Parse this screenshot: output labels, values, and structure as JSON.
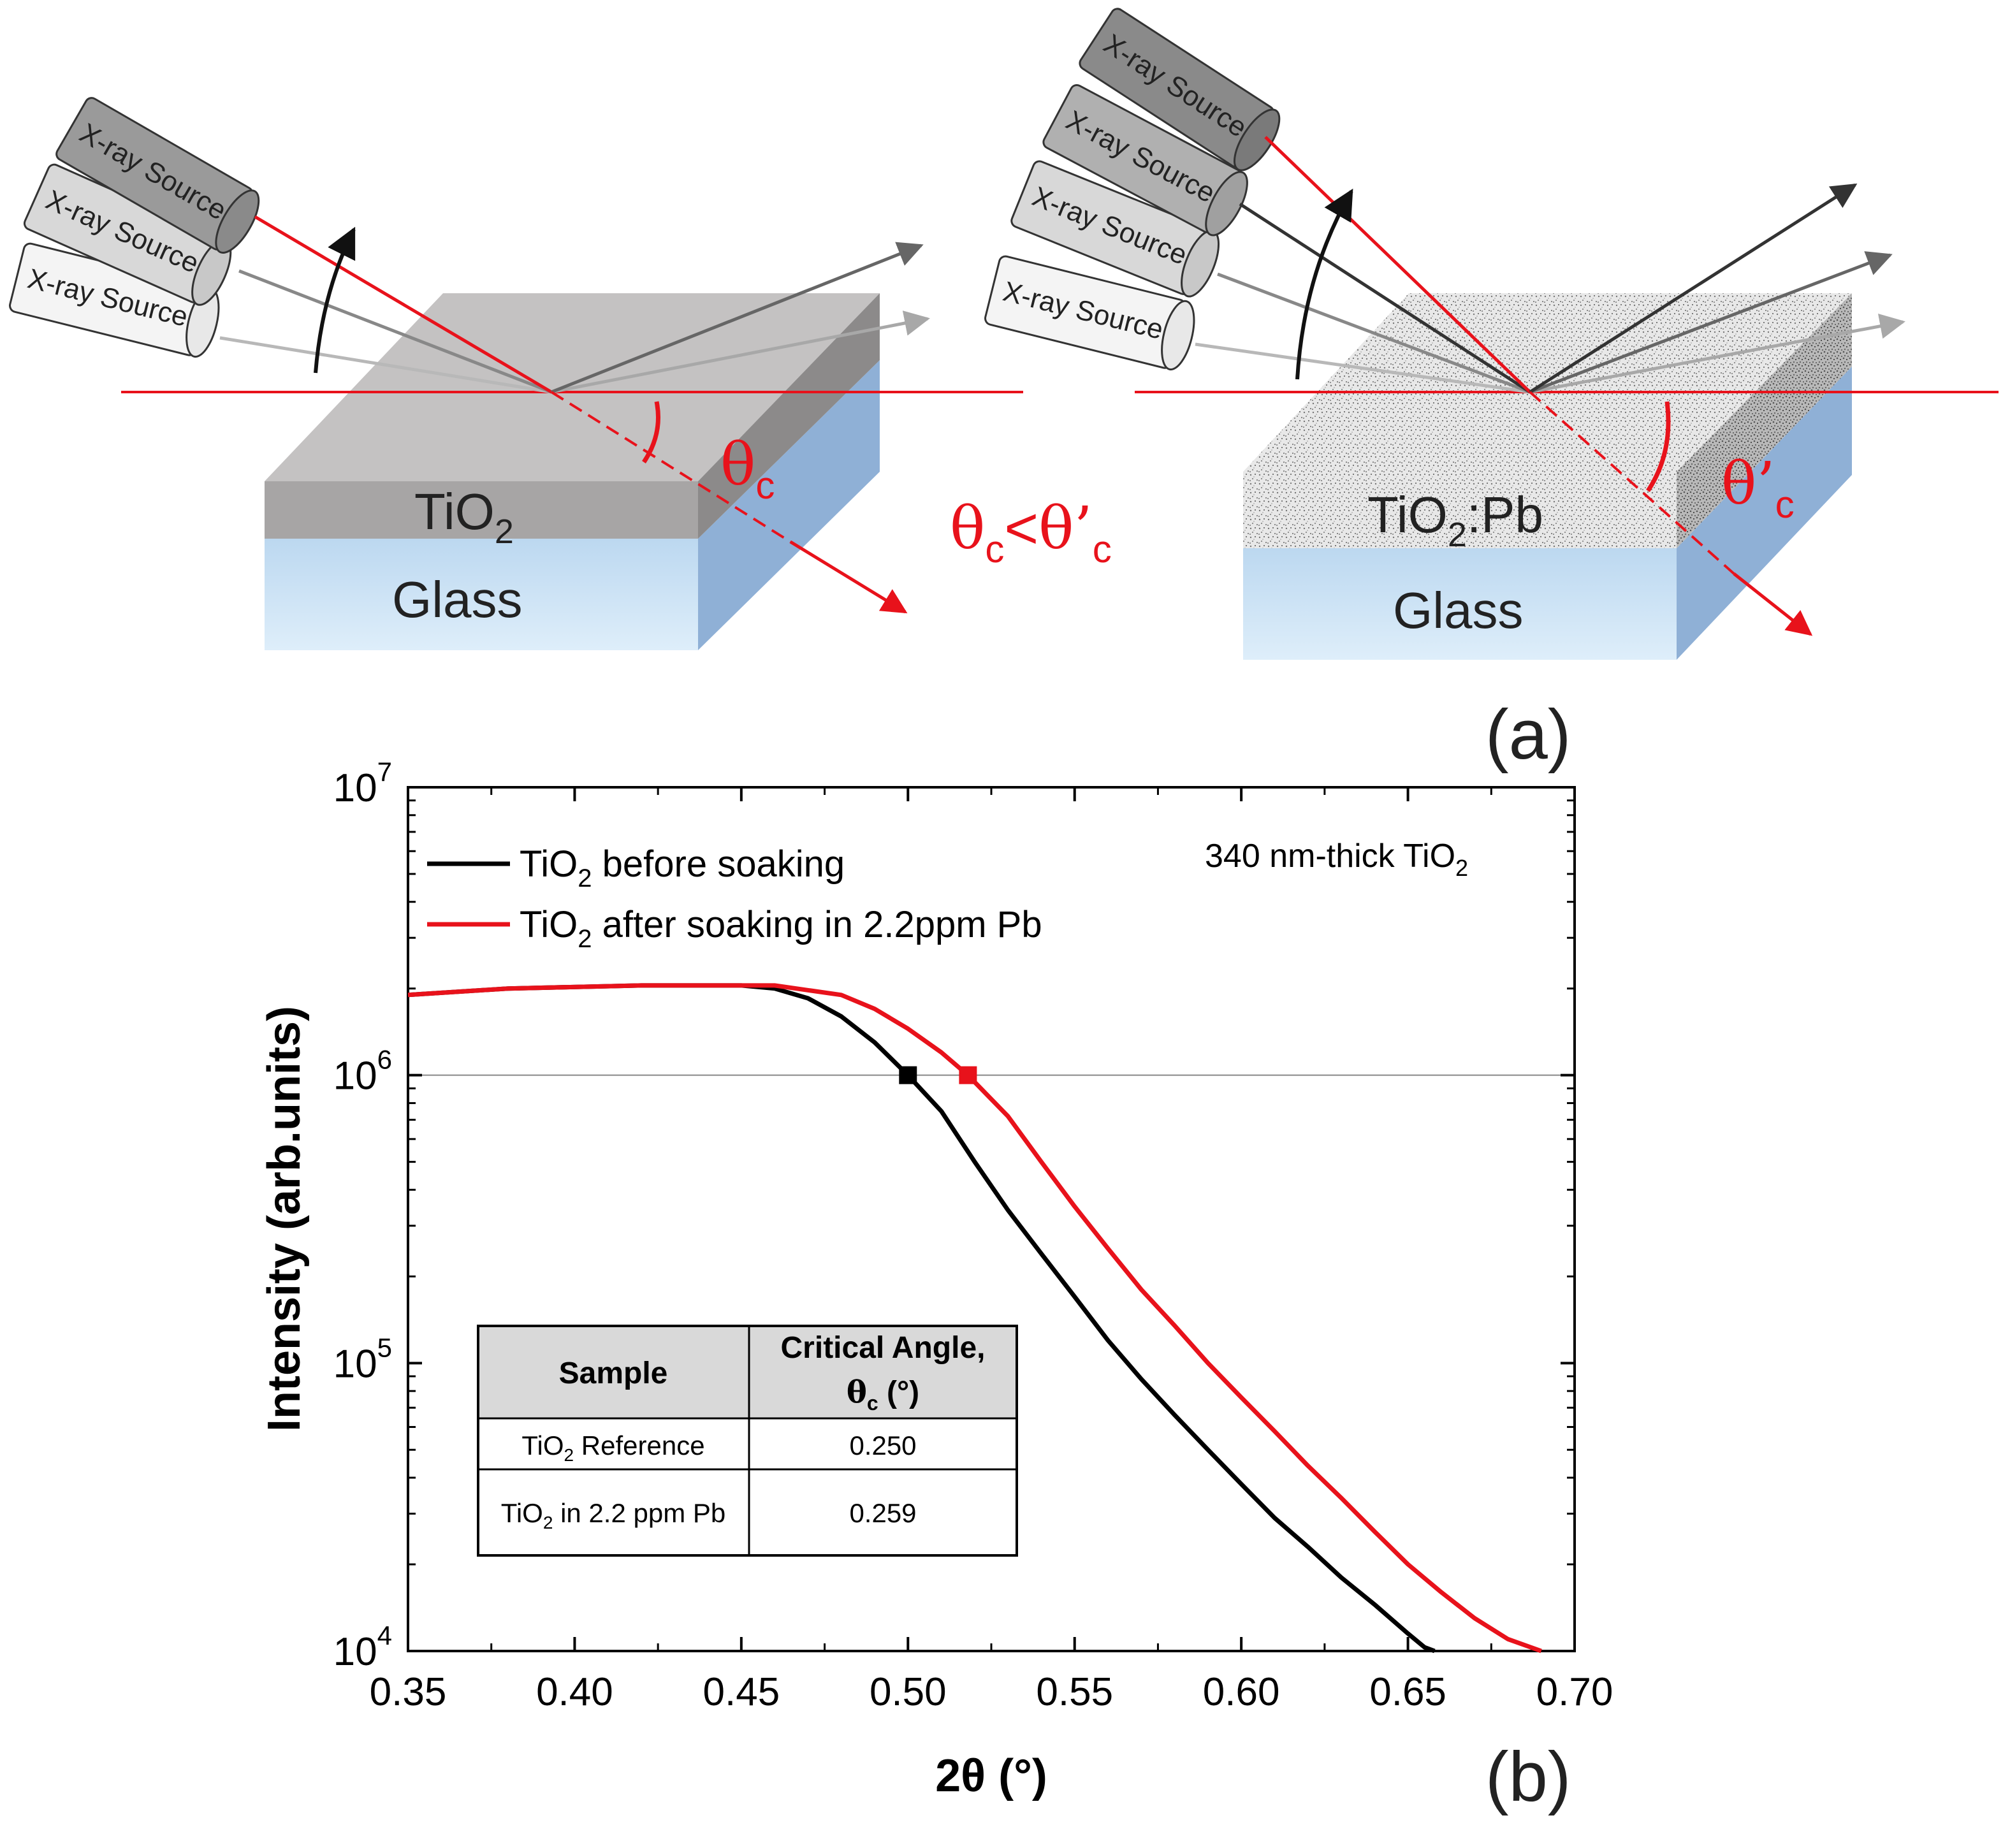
{
  "panel_a": {
    "label": "(a)",
    "source_label": "X-ray Source",
    "left_film": "TiO",
    "left_film_sub": "2",
    "right_film": "TiO",
    "right_film_sub": "2",
    "right_film_suffix": ":Pb",
    "substrate": "Glass",
    "theta": "θ",
    "theta_prime": "θ’",
    "theta_sub": "c",
    "comparison_lt": "<",
    "colors": {
      "beam": "#e8121b",
      "film_left": "#a5a3a3",
      "film_top": "#c6c4c4",
      "glass_front": "#cfe3f3",
      "glass_side": "#8fb0d6"
    }
  },
  "panel_b": {
    "label": "(b)",
    "annotation": "340 nm-thick TiO",
    "annotation_sub": "2",
    "legend": [
      {
        "prefix": "TiO",
        "sub": "2",
        "rest": " before soaking",
        "color": "#000000"
      },
      {
        "prefix": "TiO",
        "sub": "2",
        "rest": " after soaking in 2.2ppm Pb",
        "color": "#e8121b"
      }
    ],
    "table": {
      "header_sample": "Sample",
      "header_angle_line1": "Critical Angle,",
      "header_angle_line2_sym": "θ",
      "header_angle_line2_sub": "c",
      "header_angle_line2_unit": " (°)",
      "rows": [
        {
          "prefix": "TiO",
          "sub": "2",
          "rest": " Reference",
          "value": "0.250"
        },
        {
          "prefix": "TiO",
          "sub": "2",
          "rest": " in 2.2 ppm Pb",
          "value": "0.259"
        }
      ]
    }
  },
  "chart_data": {
    "type": "line",
    "yscale": "log",
    "xlabel": "2θ (°)",
    "ylabel": "Intensity (arb.units)",
    "xlim": [
      0.35,
      0.7
    ],
    "ylim": [
      10000,
      10000000
    ],
    "x_ticks": [
      "0.35",
      "0.40",
      "0.45",
      "0.50",
      "0.55",
      "0.60",
      "0.65",
      "0.70"
    ],
    "y_ticks": [
      {
        "base": "10",
        "exp": "4",
        "value": 10000
      },
      {
        "base": "10",
        "exp": "5",
        "value": 100000
      },
      {
        "base": "10",
        "exp": "6",
        "value": 1000000
      },
      {
        "base": "10",
        "exp": "7",
        "value": 10000000
      }
    ],
    "reference_line_y": 1000000,
    "series": [
      {
        "name": "TiO2 before soaking",
        "color": "#000000",
        "points": [
          [
            0.35,
            1900000
          ],
          [
            0.38,
            2000000
          ],
          [
            0.42,
            2050000
          ],
          [
            0.45,
            2050000
          ],
          [
            0.46,
            2000000
          ],
          [
            0.47,
            1850000
          ],
          [
            0.48,
            1600000
          ],
          [
            0.49,
            1300000
          ],
          [
            0.5,
            1000000
          ],
          [
            0.51,
            750000
          ],
          [
            0.52,
            500000
          ],
          [
            0.53,
            340000
          ],
          [
            0.54,
            240000
          ],
          [
            0.55,
            170000
          ],
          [
            0.56,
            120000
          ],
          [
            0.57,
            88000
          ],
          [
            0.58,
            66000
          ],
          [
            0.59,
            50000
          ],
          [
            0.6,
            38000
          ],
          [
            0.61,
            29000
          ],
          [
            0.62,
            23000
          ],
          [
            0.63,
            18000
          ],
          [
            0.64,
            14500
          ],
          [
            0.65,
            11500
          ],
          [
            0.655,
            10300
          ],
          [
            0.658,
            10000
          ]
        ],
        "marker": {
          "x": 0.5,
          "y": 1000000
        }
      },
      {
        "name": "TiO2 after soaking in 2.2ppm Pb",
        "color": "#e8121b",
        "points": [
          [
            0.35,
            1900000
          ],
          [
            0.38,
            2000000
          ],
          [
            0.42,
            2050000
          ],
          [
            0.46,
            2050000
          ],
          [
            0.48,
            1900000
          ],
          [
            0.49,
            1700000
          ],
          [
            0.5,
            1450000
          ],
          [
            0.51,
            1200000
          ],
          [
            0.518,
            1000000
          ],
          [
            0.53,
            720000
          ],
          [
            0.54,
            500000
          ],
          [
            0.55,
            350000
          ],
          [
            0.56,
            250000
          ],
          [
            0.57,
            180000
          ],
          [
            0.58,
            135000
          ],
          [
            0.59,
            100000
          ],
          [
            0.6,
            76000
          ],
          [
            0.61,
            58000
          ],
          [
            0.62,
            44000
          ],
          [
            0.63,
            34000
          ],
          [
            0.64,
            26000
          ],
          [
            0.65,
            20000
          ],
          [
            0.66,
            16000
          ],
          [
            0.67,
            13000
          ],
          [
            0.68,
            11000
          ],
          [
            0.69,
            10000
          ]
        ],
        "marker": {
          "x": 0.518,
          "y": 1000000
        }
      }
    ]
  }
}
